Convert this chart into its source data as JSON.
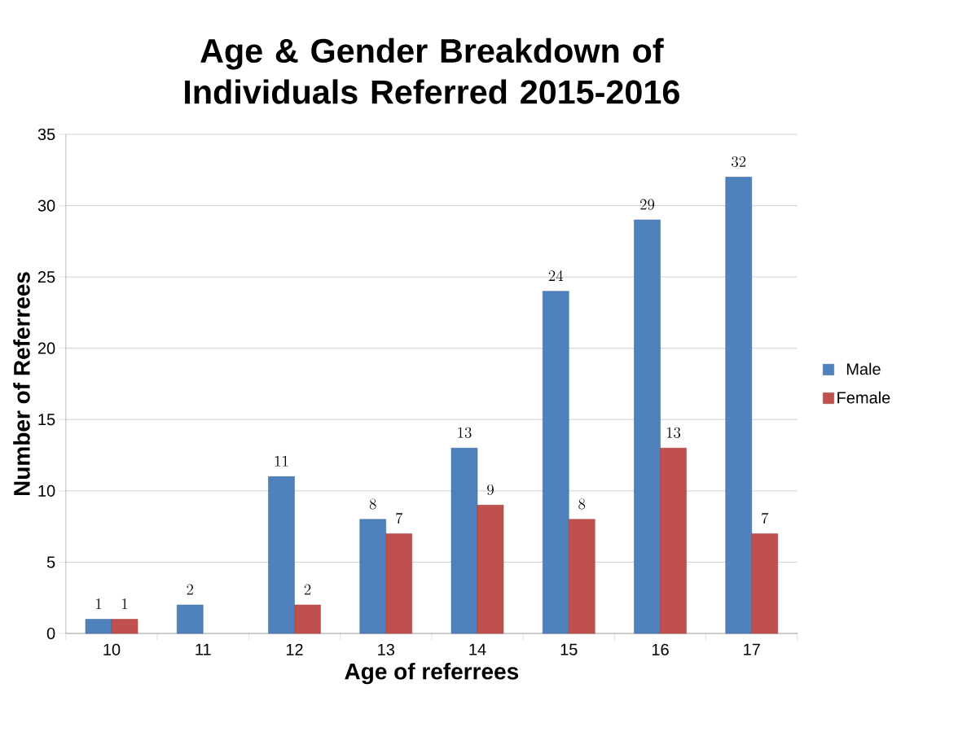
{
  "chart_data": {
    "type": "bar",
    "title": "Age & Gender Breakdown of Individuals Referred 2015-2016",
    "xlabel": "Age of referrees",
    "ylabel": "Number of Referrees",
    "categories": [
      "10",
      "11",
      "12",
      "13",
      "14",
      "15",
      "16",
      "17"
    ],
    "series": [
      {
        "name": "Male",
        "color": "#4f81bd",
        "values": [
          1,
          2,
          11,
          8,
          13,
          24,
          29,
          32
        ]
      },
      {
        "name": "Female",
        "color": "#c0504d",
        "values": [
          1,
          null,
          2,
          7,
          9,
          8,
          13,
          7
        ]
      }
    ],
    "ylim": [
      0,
      35
    ],
    "yticks": [
      0,
      5,
      10,
      15,
      20,
      25,
      30,
      35
    ],
    "grid": "y",
    "legend": "right",
    "data_labels": true
  }
}
